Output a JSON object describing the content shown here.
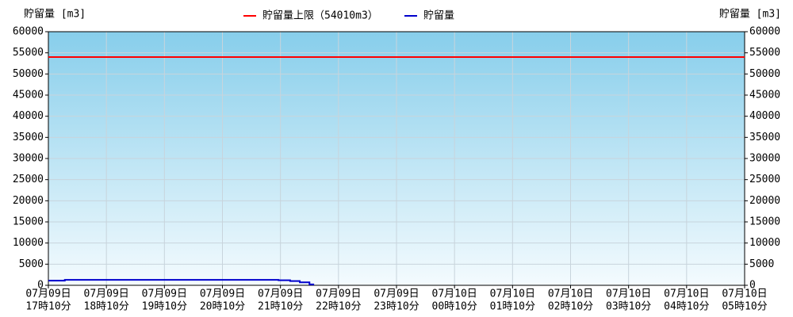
{
  "chart_data": {
    "type": "line",
    "y_label": "貯留量 [m3]",
    "y2_label": "貯留量 [m3]",
    "xlim": [
      0,
      720
    ],
    "xticks": [
      {
        "value": 0,
        "label": [
          "07月09日",
          "17時10分"
        ]
      },
      {
        "value": 60,
        "label": [
          "07月09日",
          "18時10分"
        ]
      },
      {
        "value": 120,
        "label": [
          "07月09日",
          "19時10分"
        ]
      },
      {
        "value": 180,
        "label": [
          "07月09日",
          "20時10分"
        ]
      },
      {
        "value": 240,
        "label": [
          "07月09日",
          "21時10分"
        ]
      },
      {
        "value": 300,
        "label": [
          "07月09日",
          "22時10分"
        ]
      },
      {
        "value": 360,
        "label": [
          "07月09日",
          "23時10分"
        ]
      },
      {
        "value": 420,
        "label": [
          "07月10日",
          "00時10分"
        ]
      },
      {
        "value": 480,
        "label": [
          "07月10日",
          "01時10分"
        ]
      },
      {
        "value": 540,
        "label": [
          "07月10日",
          "02時10分"
        ]
      },
      {
        "value": 600,
        "label": [
          "07月10日",
          "03時10分"
        ]
      },
      {
        "value": 660,
        "label": [
          "07月10日",
          "04時10分"
        ]
      },
      {
        "value": 720,
        "label": [
          "07月10日",
          "05時10分"
        ]
      }
    ],
    "ylim": [
      0,
      60000
    ],
    "yticks": [
      0,
      5000,
      10000,
      15000,
      20000,
      25000,
      30000,
      35000,
      40000,
      45000,
      50000,
      55000,
      60000
    ],
    "y2lim": [
      0,
      60000
    ],
    "y2ticks": [
      0,
      5000,
      10000,
      15000,
      20000,
      25000,
      30000,
      35000,
      40000,
      45000,
      50000,
      55000,
      60000
    ],
    "grid": true,
    "series": [
      {
        "name": "貯留量上限（54010m3）",
        "color": "#ff0000",
        "x": [
          0,
          720
        ],
        "values": [
          54010,
          54010
        ]
      },
      {
        "name": "貯留量",
        "color": "#0000cc",
        "x": [
          0,
          17,
          17,
          238,
          238,
          250,
          250,
          260,
          260,
          270,
          270,
          274,
          274
        ],
        "values": [
          1100,
          1100,
          1300,
          1300,
          1200,
          1200,
          1000,
          1000,
          700,
          700,
          200,
          200,
          0
        ]
      }
    ]
  }
}
